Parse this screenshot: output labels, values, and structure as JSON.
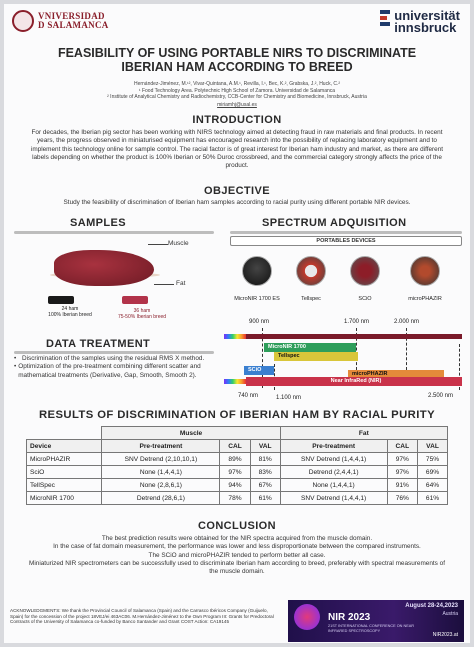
{
  "header": {
    "left_logo": [
      "VNIVERSIDAD",
      "D SALAMANCA"
    ],
    "right_logo": [
      "universität",
      "innsbruck"
    ]
  },
  "title": {
    "line1": "FEASIBILITY OF USING PORTABLE NIRS TO DISCRIMINATE",
    "line2": "IBERIAN HAM ACCORDING TO BREED",
    "authors": "Hernández-Jiménez, M.¹², Vivar-Quintana, A.M.¹, Revilla, I.¹, Bec, K.², Grabska, J.², Huck, C.²",
    "affil1": "¹ Food Technology Area. Polytechnic High School of Zamora. Universidad de Salamanca",
    "affil2": "² Institute of Analytical Chemistry and Radiochemistry, CCB-Center for Chemistry and Biomedicine, Innsbruck, Austria",
    "email": "miriamhj@usal.es"
  },
  "introduction": {
    "heading": "INTRODUCTION",
    "text": "For decades, the Iberian pig sector has been working with NIRS technology aimed at detecting fraud in raw materials and final products. In recent years, the progress observed in miniaturised equipment has encouraged research into the possibility of replacing laboratory equipment and to implement this technology online for sample control. The racial factor is of great interest for Iberian ham industry and market, as there are different labels depending on whether the product is 100% Iberian or 50% Duroc crossbreed, and the commercial category strongly affects the price of the product."
  },
  "objective": {
    "heading": "OBJECTIVE",
    "text": "Study the feasibility of discrimination of Iberian ham samples according to racial purity using different portable NIR devices."
  },
  "samples": {
    "heading": "SAMPLES",
    "muscle": "Muscle",
    "fat": "Fat",
    "s1": [
      "24 ham",
      "100% Iberian breed"
    ],
    "s2": [
      "36 ham",
      "75-50% Iberian breed"
    ],
    "colors": {
      "s1": "#1a1a1a",
      "s2": "#b2334a"
    }
  },
  "spectrum": {
    "heading": "SPECTRUM ADQUISITION",
    "devices_label": "PORTABLES DEVICES",
    "devices": [
      "MicroNIR 1700 ES",
      "Tellspec",
      "SCiO",
      "microPHAZIR"
    ],
    "ticks_top": [
      "900 nm",
      "1.700 nm",
      "2.000 nm"
    ],
    "ticks_bottom": [
      "740 nm",
      "1.100 nm",
      "2.500 nm"
    ],
    "bars": [
      {
        "label": "MicroNIR 1700",
        "color": "#2e9e5b"
      },
      {
        "label": "Tellspec",
        "color": "#d9c63a"
      },
      {
        "label": "microPHAZIR",
        "color": "#e48a3a"
      },
      {
        "label": "SCiO",
        "color": "#3a7fd0"
      },
      {
        "label": "Near InfraRed (NIR)",
        "color": "#c9324a"
      }
    ]
  },
  "data_treatment": {
    "heading": "DATA TREATMENT",
    "bullets": [
      "Discrimination of the samples using the residual RMS X method.",
      "Optimization of the pre-treatment combining different scatter and mathematical treatments (Derivative, Gap, Smooth, Smooth 2)."
    ]
  },
  "results": {
    "heading": "RESULTS OF DISCRIMINATION OF IBERIAN HAM BY RACIAL PURITY",
    "group_muscle": "Muscle",
    "group_fat": "Fat",
    "cols": [
      "Device",
      "Pre-treatment",
      "CAL",
      "VAL",
      "Pre-treatment",
      "CAL",
      "VAL"
    ],
    "rows": [
      [
        "MicroPHAZIR",
        "SNV Detrend (2,10,10,1)",
        "89%",
        "81%",
        "SNV Detrend (1,4,4,1)",
        "97%",
        "75%"
      ],
      [
        "SciO",
        "None (1,4,4,1)",
        "97%",
        "83%",
        "Detrend (2,4,4,1)",
        "97%",
        "69%"
      ],
      [
        "TellSpec",
        "None (2,8,6,1)",
        "94%",
        "67%",
        "None (1,4,4,1)",
        "91%",
        "64%"
      ],
      [
        "MicroNIR 1700",
        "Detrend (28,6,1)",
        "78%",
        "61%",
        "SNV Detrend (1,4,4,1)",
        "76%",
        "61%"
      ]
    ]
  },
  "conclusion": {
    "heading": "CONCLUSION",
    "lines": [
      "The best prediction results were obtained for the NIR spectra acquired from the muscle domain.",
      "In the case of fat domain measurement, the performance was lower and less disproportionate between the compared instruments.",
      "The SCiO and microPHAZIR tended to perform better all case.",
      "Miniaturized NIR spectrometers can be successfully used to discriminate Iberian ham according to breed, preferably with spectral measurements of the muscle domain."
    ]
  },
  "footer": {
    "ack": "ACKNOWLEDGMENTS: We thank the Provincial Council of Salamanca (Spain) and the Carrasco Ibéricos Company (Guijuelo, Spain) for the concession of the project 18VEJ/ei 463AC06. M.Hernández-Jiménez to the Own Program III: Grants for Predoctoral Contracts of the University of Salamanca co-funded by Banco Santander and Grant COST Action: CA19145",
    "conf_date": "August 28-24,2023",
    "conf_place": "Austria",
    "conf_name": "NIR 2023",
    "conf_sub": "21ST INTERNATIONAL CONFERENCE ON NEAR INFRARED SPECTROSCOPY",
    "conf_url": "NIR2023.at"
  }
}
